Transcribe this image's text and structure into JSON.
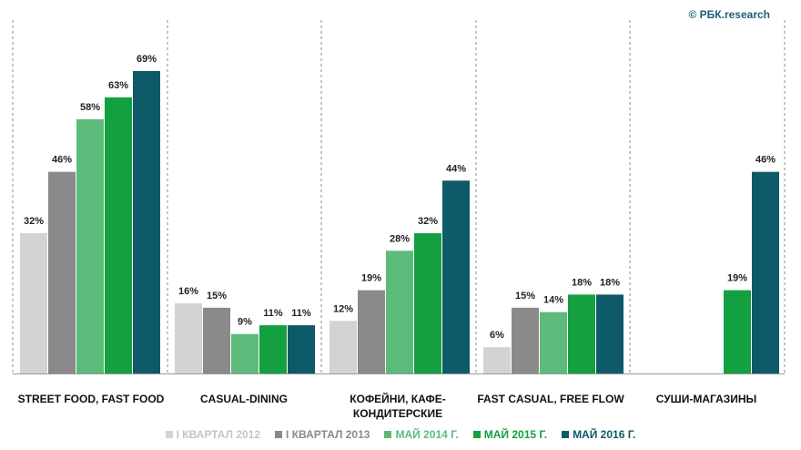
{
  "source": "© РБК.research",
  "chart_data": {
    "type": "bar",
    "title": "",
    "xlabel": "",
    "ylabel": "",
    "ylim": [
      0,
      72
    ],
    "grid": false,
    "legend_position": "bottom",
    "categories": [
      "STREET FOOD, FAST FOOD",
      "CASUAL-DINING",
      "КОФЕЙНИ, КАФЕ-КОНДИТЕРСКИЕ",
      "FAST CASUAL,  FREE FLOW",
      "СУШИ-МАГАЗИНЫ"
    ],
    "category_lines": [
      [
        "STREET FOOD, FAST FOOD"
      ],
      [
        "CASUAL-DINING"
      ],
      [
        "КОФЕЙНИ, КАФЕ-",
        "КОНДИТЕРСКИЕ"
      ],
      [
        "FAST CASUAL,  FREE FLOW"
      ],
      [
        "СУШИ-МАГАЗИНЫ"
      ]
    ],
    "series": [
      {
        "name": "I КВАРТАЛ 2012",
        "color": "#d3d3d3",
        "values": [
          32,
          16,
          12,
          6,
          null
        ]
      },
      {
        "name": "I КВАРТАЛ 2013",
        "color": "#8a8a8a",
        "values": [
          46,
          15,
          19,
          15,
          null
        ]
      },
      {
        "name": "МАЙ 2014 Г.",
        "color": "#5cbb7a",
        "values": [
          58,
          9,
          28,
          14,
          null
        ]
      },
      {
        "name": "МАЙ 2015 Г.",
        "color": "#13a040",
        "values": [
          63,
          11,
          32,
          18,
          19
        ]
      },
      {
        "name": "МАЙ 2016 Г.",
        "color": "#0f5a68",
        "values": [
          69,
          11,
          44,
          18,
          46
        ]
      }
    ]
  }
}
